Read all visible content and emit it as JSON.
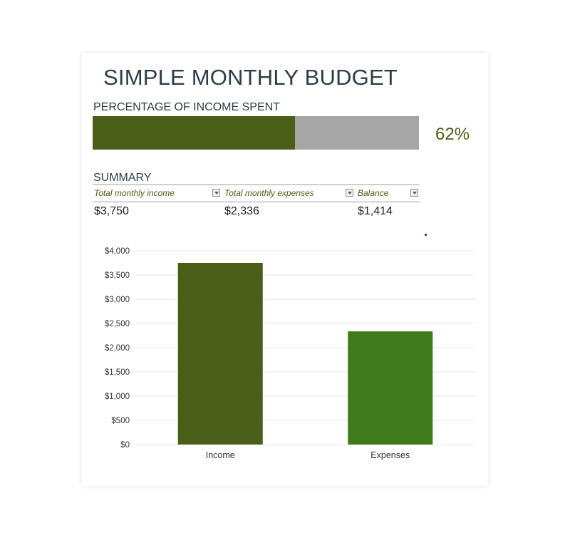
{
  "title": "SIMPLE MONTHLY BUDGET",
  "percentage": {
    "label": "PERCENTAGE OF INCOME SPENT",
    "value_text": "62%",
    "fraction": 0.62
  },
  "summary": {
    "title": "SUMMARY",
    "columns": [
      {
        "header": "Total monthly income",
        "value": "$3,750"
      },
      {
        "header": "Total monthly expenses",
        "value": "$2,336"
      },
      {
        "header": "Balance",
        "value": "$1,414"
      }
    ]
  },
  "colors": {
    "income_bar": "#4b5e17",
    "expenses_bar": "#3f7a1b",
    "progress_fill": "#4b5e17",
    "progress_track": "#a6a6a6",
    "title_text": "#2c3e45"
  },
  "chart_data": {
    "type": "bar",
    "categories": [
      "Income",
      "Expenses"
    ],
    "values": [
      3750,
      2336
    ],
    "ylim": [
      0,
      4000
    ],
    "yticks": [
      "$0",
      "$500",
      "$1,000",
      "$1,500",
      "$2,000",
      "$2,500",
      "$3,000",
      "$3,500",
      "$4,000"
    ],
    "ytick_values": [
      0,
      500,
      1000,
      1500,
      2000,
      2500,
      3000,
      3500,
      4000
    ],
    "grid": true,
    "legend": "none"
  }
}
